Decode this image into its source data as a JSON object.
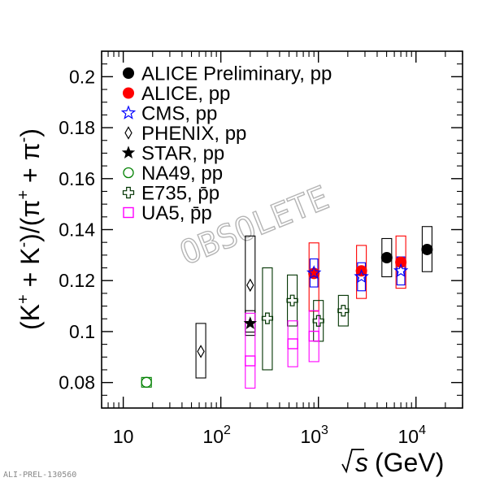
{
  "chart_data": {
    "type": "scatter",
    "xlabel": "s (GeV)",
    "ylabel_parts": [
      "(K",
      "+",
      " + K",
      "-",
      ")/(π",
      "+",
      " + π",
      "-",
      ")"
    ],
    "x_scale": "log",
    "xlim": [
      6,
      30000
    ],
    "ylim": [
      0.07,
      0.21
    ],
    "x_ticks": [
      {
        "value": 10,
        "base": "10",
        "exp": ""
      },
      {
        "value": 100,
        "base": "10",
        "exp": "2"
      },
      {
        "value": 1000,
        "base": "10",
        "exp": "3"
      },
      {
        "value": 10000,
        "base": "10",
        "exp": "4"
      }
    ],
    "y_ticks": [
      "0.08",
      "0.1",
      "0.12",
      "0.14",
      "0.16",
      "0.18",
      "0.2"
    ],
    "watermark": "OBSOLETE",
    "footer": "ALI-PREL-130560",
    "series": [
      {
        "name": "ALICE Preliminary, pp",
        "marker": "filled-circle",
        "color": "#000000",
        "box_color": "#000000",
        "points": [
          {
            "x": 5020,
            "y": 0.129,
            "lo": 0.1215,
            "hi": 0.1365,
            "w": 0.05
          },
          {
            "x": 13000,
            "y": 0.1322,
            "lo": 0.1235,
            "hi": 0.1412,
            "w": 0.05
          }
        ]
      },
      {
        "name": "ALICE, pp",
        "marker": "filled-circle",
        "color": "#ff0000",
        "box_color": "#ff0000",
        "points": [
          {
            "x": 900,
            "y": 0.1228,
            "lo": 0.108,
            "hi": 0.1348,
            "w": 0.05
          },
          {
            "x": 2760,
            "y": 0.1238,
            "lo": 0.113,
            "hi": 0.1338,
            "w": 0.05
          },
          {
            "x": 7000,
            "y": 0.1272,
            "lo": 0.117,
            "hi": 0.1375,
            "w": 0.05
          }
        ]
      },
      {
        "name": "CMS, pp",
        "marker": "open-star",
        "color": "#0000ff",
        "box_color": "#0000ff",
        "points": [
          {
            "x": 900,
            "y": 0.123,
            "lo": 0.1175,
            "hi": 0.1285,
            "w": 0.04
          },
          {
            "x": 2760,
            "y": 0.1215,
            "lo": 0.116,
            "hi": 0.127,
            "w": 0.04
          },
          {
            "x": 7000,
            "y": 0.1238,
            "lo": 0.1183,
            "hi": 0.1293,
            "w": 0.04
          }
        ]
      },
      {
        "name": "PHENIX, pp",
        "marker": "open-diamond",
        "color": "#000000",
        "box_color": "#000000",
        "points": [
          {
            "x": 62.4,
            "y": 0.0922,
            "lo": 0.0818,
            "hi": 0.1032,
            "w": 0.05
          },
          {
            "x": 200,
            "y": 0.1182,
            "lo": 0.0998,
            "hi": 0.1375,
            "w": 0.05
          }
        ]
      },
      {
        "name": "STAR, pp",
        "marker": "filled-star",
        "color": "#000000",
        "box_color": "#000000",
        "points": [
          {
            "x": 200,
            "y": 0.1032,
            "lo": 0.0985,
            "hi": 0.1082,
            "w": 0.05
          }
        ]
      },
      {
        "name": "NA49, pp",
        "marker": "open-circle",
        "color": "#008000",
        "box_color": "#008000",
        "points": [
          {
            "x": 17.3,
            "y": 0.0801,
            "lo": 0.0782,
            "hi": 0.082,
            "w": 0.05
          }
        ]
      },
      {
        "name": "E735, p̄p",
        "marker": "open-cross",
        "color": "#003300",
        "box_color": "#003300",
        "points": [
          {
            "x": 300,
            "y": 0.1052,
            "lo": 0.085,
            "hi": 0.125,
            "w": 0.05
          },
          {
            "x": 540,
            "y": 0.1122,
            "lo": 0.1022,
            "hi": 0.1222,
            "w": 0.05
          },
          {
            "x": 1000,
            "y": 0.1042,
            "lo": 0.0962,
            "hi": 0.1122,
            "w": 0.05
          },
          {
            "x": 1800,
            "y": 0.1082,
            "lo": 0.1022,
            "hi": 0.1142,
            "w": 0.05
          }
        ]
      },
      {
        "name": "UA5, p̄p",
        "marker": "open-square",
        "color": "#ff00ff",
        "box_color": "#ff00ff",
        "points": [
          {
            "x": 200,
            "y": 0.0885,
            "lo": 0.0778,
            "hi": 0.1072,
            "w": 0.05
          },
          {
            "x": 546,
            "y": 0.0952,
            "lo": 0.0862,
            "hi": 0.1042,
            "w": 0.05
          },
          {
            "x": 900,
            "y": 0.0982,
            "lo": 0.0882,
            "hi": 0.1082,
            "w": 0.05
          }
        ]
      }
    ]
  }
}
